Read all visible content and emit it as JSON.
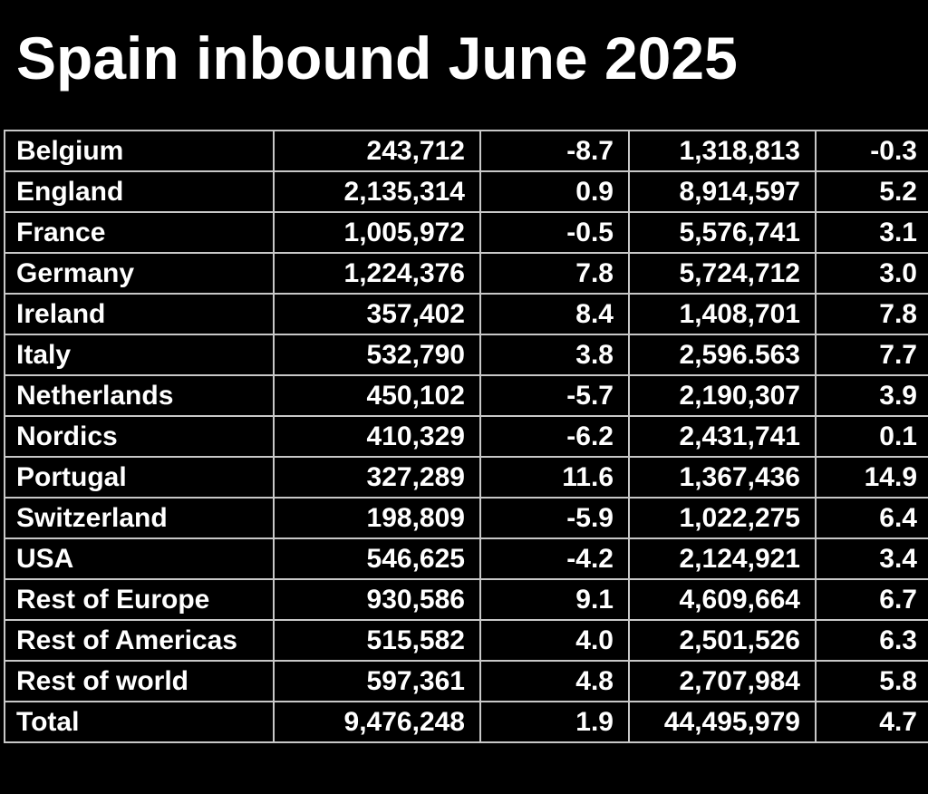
{
  "title": "Spain inbound June 2025",
  "rows": [
    {
      "name": "Belgium",
      "arrivals": "243,712",
      "change": "-8.7",
      "ytd": "1,318,813",
      "ytd_change": "-0.3"
    },
    {
      "name": "England",
      "arrivals": "2,135,314",
      "change": "0.9",
      "ytd": "8,914,597",
      "ytd_change": "5.2"
    },
    {
      "name": "France",
      "arrivals": "1,005,972",
      "change": "-0.5",
      "ytd": "5,576,741",
      "ytd_change": "3.1"
    },
    {
      "name": "Germany",
      "arrivals": "1,224,376",
      "change": "7.8",
      "ytd": "5,724,712",
      "ytd_change": "3.0"
    },
    {
      "name": "Ireland",
      "arrivals": "357,402",
      "change": "8.4",
      "ytd": "1,408,701",
      "ytd_change": "7.8"
    },
    {
      "name": "Italy",
      "arrivals": "532,790",
      "change": "3.8",
      "ytd": "2,596.563",
      "ytd_change": "7.7"
    },
    {
      "name": "Netherlands",
      "arrivals": "450,102",
      "change": "-5.7",
      "ytd": "2,190,307",
      "ytd_change": "3.9"
    },
    {
      "name": "Nordics",
      "arrivals": "410,329",
      "change": "-6.2",
      "ytd": "2,431,741",
      "ytd_change": "0.1"
    },
    {
      "name": "Portugal",
      "arrivals": "327,289",
      "change": "11.6",
      "ytd": "1,367,436",
      "ytd_change": "14.9"
    },
    {
      "name": "Switzerland",
      "arrivals": "198,809",
      "change": "-5.9",
      "ytd": "1,022,275",
      "ytd_change": "6.4"
    },
    {
      "name": "USA",
      "arrivals": "546,625",
      "change": "-4.2",
      "ytd": "2,124,921",
      "ytd_change": "3.4"
    },
    {
      "name": "Rest of Europe",
      "arrivals": "930,586",
      "change": "9.1",
      "ytd": "4,609,664",
      "ytd_change": "6.7"
    },
    {
      "name": "Rest of Americas",
      "arrivals": "515,582",
      "change": "4.0",
      "ytd": "2,501,526",
      "ytd_change": "6.3"
    },
    {
      "name": "Rest of world",
      "arrivals": "597,361",
      "change": "4.8",
      "ytd": "2,707,984",
      "ytd_change": "5.8"
    },
    {
      "name": "Total",
      "arrivals": "9,476,248",
      "change": "1.9",
      "ytd": "44,495,979",
      "ytd_change": "4.7"
    }
  ]
}
